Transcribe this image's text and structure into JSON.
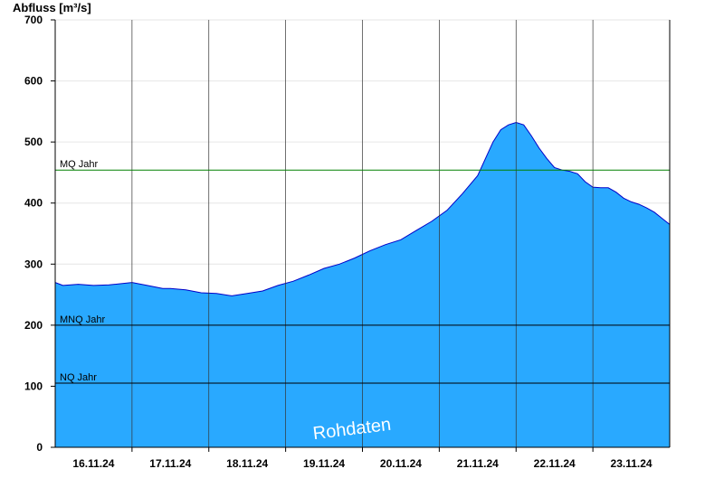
{
  "chart_data": {
    "type": "area",
    "ylabel": "Abfluss [m³/s]",
    "ylim": [
      0,
      700
    ],
    "yticks": [
      "0",
      "100",
      "200",
      "300",
      "400",
      "500",
      "600",
      "700"
    ],
    "categories": [
      "16.11.24",
      "17.11.24",
      "18.11.24",
      "19.11.24",
      "20.11.24",
      "21.11.24",
      "22.11.24",
      "23.11.24"
    ],
    "xlim_days": [
      15.5,
      23.5
    ],
    "fill_color": "#29a9ff",
    "line_color": "#0000c8",
    "series": [
      {
        "x": [
          15.5,
          15.6,
          15.7,
          15.8,
          15.9,
          16.0,
          16.2,
          16.5,
          16.7,
          16.9,
          17.0,
          17.2,
          17.4,
          17.6,
          17.8,
          18.0,
          18.2,
          18.4,
          18.6,
          18.8,
          19.0,
          19.2,
          19.4,
          19.6,
          19.8,
          20.0,
          20.2,
          20.4,
          20.6,
          20.8,
          21.0,
          21.2,
          21.3,
          21.4,
          21.5,
          21.6,
          21.7,
          21.8,
          21.9,
          22.0,
          22.1,
          22.2,
          22.3,
          22.4,
          22.5,
          22.6,
          22.7,
          22.8,
          22.9,
          23.0,
          23.1,
          23.2,
          23.3,
          23.4,
          23.5
        ],
        "values": [
          270,
          265,
          266,
          267,
          266,
          265,
          266,
          270,
          265,
          260,
          260,
          258,
          253,
          252,
          248,
          252,
          256,
          265,
          272,
          282,
          293,
          300,
          310,
          322,
          332,
          340,
          355,
          370,
          388,
          415,
          445,
          500,
          520,
          528,
          532,
          528,
          510,
          490,
          473,
          458,
          454,
          452,
          448,
          435,
          426,
          425,
          425,
          418,
          408,
          402,
          398,
          392,
          385,
          375,
          365
        ]
      }
    ],
    "reference_lines": [
      {
        "label": "MQ Jahr",
        "value": 454,
        "color": "#008000"
      },
      {
        "label": "MNQ Jahr",
        "value": 200,
        "color": "#000000"
      },
      {
        "label": "NQ Jahr",
        "value": 105,
        "color": "#000000"
      }
    ],
    "watermark": "Rohdaten"
  }
}
